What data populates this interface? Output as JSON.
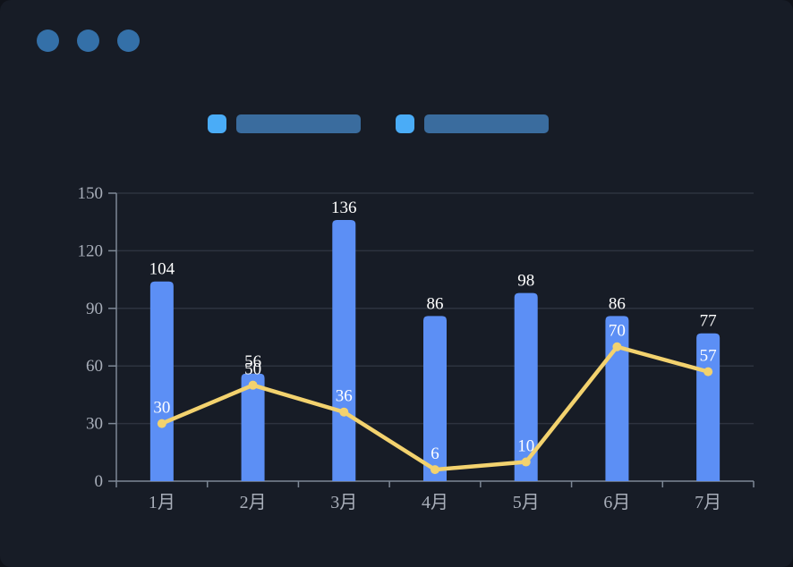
{
  "window": {
    "dot_color": "#3470A8",
    "background": "#171C26"
  },
  "legend": {
    "items": [
      {
        "name": "legend-item-bar-series",
        "swatch_color": "#4AACF7",
        "bar_color": "#3A6C9E"
      },
      {
        "name": "legend-item-line-series",
        "swatch_color": "#4AACF7",
        "bar_color": "#3A6C9E"
      }
    ]
  },
  "chart_data": {
    "type": "bar",
    "title": "",
    "xlabel": "",
    "ylabel": "",
    "categories": [
      "1月",
      "2月",
      "3月",
      "4月",
      "5月",
      "6月",
      "7月"
    ],
    "series": [
      {
        "name": "bar-series",
        "type": "bar",
        "color": "#5C8FF5",
        "values": [
          104,
          56,
          136,
          86,
          98,
          86,
          77
        ]
      },
      {
        "name": "line-series",
        "type": "line",
        "color": "#F3D26E",
        "values": [
          30,
          50,
          36,
          6,
          10,
          70,
          57
        ]
      }
    ],
    "ylim": [
      0,
      150
    ],
    "yticks": [
      0,
      30,
      60,
      90,
      120,
      150
    ],
    "grid": true,
    "legend_position": "top",
    "colors": {
      "grid_line": "#2D333F",
      "axis_line": "#7E8896",
      "tick_label": "#A8AEB9",
      "value_label": "#FFFFFF",
      "plot_background": "#171C26"
    }
  }
}
